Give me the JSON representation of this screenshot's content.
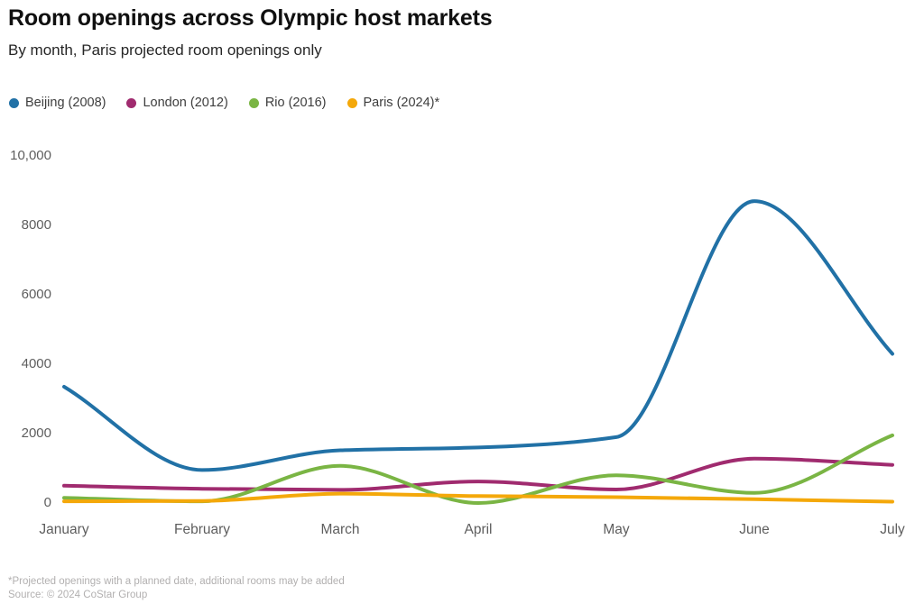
{
  "header": {
    "title": "Room openings across Olympic host markets",
    "subtitle": "By month, Paris projected room openings only"
  },
  "legend": {
    "items": [
      {
        "label": "Beijing (2008)",
        "color": "#2171A6"
      },
      {
        "label": "London (2012)",
        "color": "#A02B6F"
      },
      {
        "label": "Rio (2016)",
        "color": "#7AB544"
      },
      {
        "label": "Paris (2024)*",
        "color": "#F4A80A"
      }
    ]
  },
  "chart_data": {
    "type": "line",
    "title": "Room openings across Olympic host markets",
    "subtitle": "By month, Paris projected room openings only",
    "categories": [
      "January",
      "February",
      "March",
      "April",
      "May",
      "June",
      "July"
    ],
    "series": [
      {
        "name": "Beijing (2008)",
        "color": "#2171A6",
        "values": [
          3350,
          950,
          1520,
          1600,
          1900,
          8700,
          4300
        ]
      },
      {
        "name": "London (2012)",
        "color": "#A02B6F",
        "values": [
          500,
          410,
          380,
          620,
          390,
          1280,
          1100
        ]
      },
      {
        "name": "Rio (2016)",
        "color": "#7AB544",
        "values": [
          150,
          50,
          1070,
          0,
          800,
          290,
          1950
        ]
      },
      {
        "name": "Paris (2024)*",
        "color": "#F4A80A",
        "values": [
          50,
          60,
          270,
          200,
          170,
          110,
          40
        ]
      }
    ],
    "ylim": [
      0,
      10000
    ],
    "yticks": [
      {
        "value": 0,
        "label": "0"
      },
      {
        "value": 2000,
        "label": "2000"
      },
      {
        "value": 4000,
        "label": "4000"
      },
      {
        "value": 6000,
        "label": "6000"
      },
      {
        "value": 8000,
        "label": "8000"
      },
      {
        "value": 10000,
        "label": "10,000"
      }
    ],
    "grid": false,
    "legend_position": "top",
    "curve": "monotone"
  },
  "footnote": {
    "line1": "*Projected openings with a planned date, additional rooms may be added",
    "line2": "Source: © 2024 CoStar Group"
  }
}
